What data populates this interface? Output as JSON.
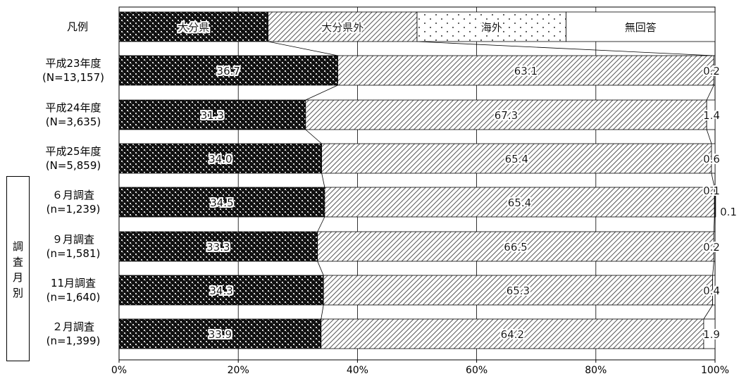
{
  "chart_data": {
    "type": "bar",
    "orientation": "horizontal",
    "stacked": "percent",
    "legend_label": "凡例",
    "legend_entries": [
      "大分県",
      "大分県外",
      "海外",
      "無回答"
    ],
    "categories": [
      {
        "line1": "平成23年度",
        "line2": "(N=13,157)"
      },
      {
        "line1": "平成24年度",
        "line2": "(N=3,635)"
      },
      {
        "line1": "平成25年度",
        "line2": "(N=5,859)"
      },
      {
        "line1": "６月調査",
        "line2": "(n=1,239)"
      },
      {
        "line1": "９月調査",
        "line2": "(n=1,581)"
      },
      {
        "line1": "11月調査",
        "line2": "(n=1,640)"
      },
      {
        "line1": "２月調査",
        "line2": "(n=1,399)"
      }
    ],
    "series": [
      {
        "name": "大分県",
        "values": [
          36.7,
          31.3,
          34.0,
          34.5,
          33.3,
          34.3,
          33.9
        ],
        "labels": [
          "36.7",
          "31.3",
          "34.0",
          "34.5",
          "33.3",
          "34.3",
          "33.9"
        ]
      },
      {
        "name": "大分県外",
        "values": [
          63.1,
          67.3,
          65.4,
          65.4,
          66.5,
          65.3,
          64.2
        ],
        "labels": [
          "63.1",
          "67.3",
          "65.4",
          "65.4",
          "66.5",
          "65.3",
          "64.2"
        ]
      },
      {
        "name": "海外",
        "values": [
          0.0,
          0.0,
          0.0,
          0.1,
          0.0,
          0.0,
          0.0
        ],
        "labels": [
          "",
          "",
          "",
          "0.1",
          "",
          "",
          ""
        ]
      },
      {
        "name": "無回答",
        "values": [
          0.2,
          1.4,
          0.6,
          0.1,
          0.2,
          0.4,
          1.9
        ],
        "labels": [
          "0.2",
          "1.4",
          "0.6",
          "0.1",
          "0.2",
          "0.4",
          "1.9"
        ]
      }
    ],
    "group_label": [
      "調",
      "査",
      "月",
      "別"
    ],
    "x_ticks": [
      "0%",
      "20%",
      "40%",
      "60%",
      "80%",
      "100%"
    ],
    "xlim": [
      0,
      100
    ],
    "grid": true
  }
}
